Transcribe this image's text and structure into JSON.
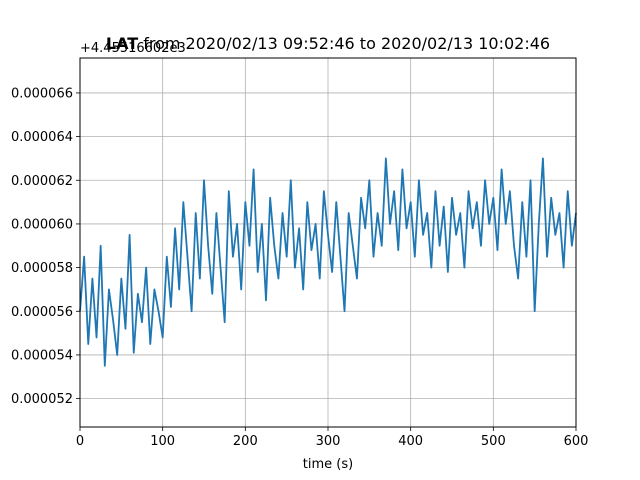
{
  "chart_data": {
    "type": "line",
    "title_bold": "LAT",
    "title_rest": " from 2020/02/13 09:52:46 to 2020/02/13 10:02:46",
    "xlabel": "time (s)",
    "ylabel": "",
    "y_offset_label": "+4.45516602e3",
    "xlim": [
      0,
      600
    ],
    "ylim": [
      5.07e-05,
      6.76e-05
    ],
    "x_ticks": [
      0,
      100,
      200,
      300,
      400,
      500,
      600
    ],
    "y_ticks": [
      5.2e-05,
      5.4e-05,
      5.6e-05,
      5.8e-05,
      6e-05,
      6.2e-05,
      6.4e-05,
      6.6e-05
    ],
    "y_tick_labels": [
      "0.000052",
      "0.000054",
      "0.000056",
      "0.000058",
      "0.000060",
      "0.000062",
      "0.000064",
      "0.000066"
    ],
    "grid": true,
    "series_color": "#1f77b4",
    "series": [
      {
        "name": "",
        "x": [
          0,
          5,
          10,
          15,
          20,
          25,
          30,
          35,
          40,
          45,
          50,
          55,
          60,
          65,
          70,
          75,
          80,
          85,
          90,
          95,
          100,
          105,
          110,
          115,
          120,
          125,
          130,
          135,
          140,
          145,
          150,
          155,
          160,
          165,
          170,
          175,
          180,
          185,
          190,
          195,
          200,
          205,
          210,
          215,
          220,
          225,
          230,
          235,
          240,
          245,
          250,
          255,
          260,
          265,
          270,
          275,
          280,
          285,
          290,
          295,
          300,
          305,
          310,
          315,
          320,
          325,
          330,
          335,
          340,
          345,
          350,
          355,
          360,
          365,
          370,
          375,
          380,
          385,
          390,
          395,
          400,
          405,
          410,
          415,
          420,
          425,
          430,
          435,
          440,
          445,
          450,
          455,
          460,
          465,
          470,
          475,
          480,
          485,
          490,
          495,
          500,
          505,
          510,
          515,
          520,
          525,
          530,
          535,
          540,
          545,
          550,
          555,
          560,
          565,
          570,
          575,
          580,
          585,
          590,
          595,
          600
        ],
        "y": [
          5.6e-05,
          5.85e-05,
          5.45e-05,
          5.75e-05,
          5.48e-05,
          5.9e-05,
          5.35e-05,
          5.7e-05,
          5.56e-05,
          5.4e-05,
          5.75e-05,
          5.52e-05,
          5.95e-05,
          5.41e-05,
          5.68e-05,
          5.55e-05,
          5.8e-05,
          5.45e-05,
          5.7e-05,
          5.6e-05,
          5.48e-05,
          5.85e-05,
          5.62e-05,
          5.98e-05,
          5.7e-05,
          6.1e-05,
          5.85e-05,
          5.6e-05,
          6.05e-05,
          5.75e-05,
          6.2e-05,
          5.9e-05,
          5.68e-05,
          6.05e-05,
          5.8e-05,
          5.55e-05,
          6.15e-05,
          5.85e-05,
          6e-05,
          5.7e-05,
          6.1e-05,
          5.9e-05,
          6.25e-05,
          5.78e-05,
          6e-05,
          5.65e-05,
          6.12e-05,
          5.9e-05,
          5.75e-05,
          6.05e-05,
          5.85e-05,
          6.2e-05,
          5.8e-05,
          5.98e-05,
          5.7e-05,
          6.1e-05,
          5.88e-05,
          6e-05,
          5.75e-05,
          6.15e-05,
          5.95e-05,
          5.78e-05,
          6.1e-05,
          5.85e-05,
          5.6e-05,
          6.05e-05,
          5.9e-05,
          5.75e-05,
          6.12e-05,
          5.98e-05,
          6.2e-05,
          5.85e-05,
          6.05e-05,
          5.9e-05,
          6.3e-05,
          6e-05,
          6.15e-05,
          5.88e-05,
          6.25e-05,
          5.98e-05,
          6.1e-05,
          5.85e-05,
          6.2e-05,
          5.95e-05,
          6.05e-05,
          5.8e-05,
          6.15e-05,
          5.9e-05,
          6.08e-05,
          5.78e-05,
          6.12e-05,
          5.95e-05,
          6.05e-05,
          5.8e-05,
          6.15e-05,
          5.98e-05,
          6.1e-05,
          5.9e-05,
          6.2e-05,
          6e-05,
          6.12e-05,
          5.88e-05,
          6.25e-05,
          6e-05,
          6.15e-05,
          5.9e-05,
          5.75e-05,
          6.1e-05,
          5.85e-05,
          6.2e-05,
          5.6e-05,
          6e-05,
          6.3e-05,
          5.85e-05,
          6.12e-05,
          5.95e-05,
          6.05e-05,
          5.8e-05,
          6.15e-05,
          5.9e-05,
          6.05e-05
        ]
      }
    ]
  }
}
